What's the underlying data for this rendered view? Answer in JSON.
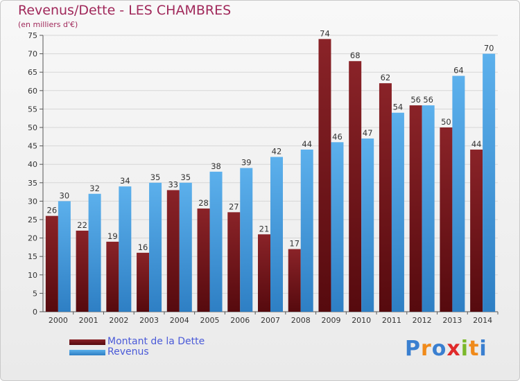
{
  "title": "Revenus/Dette - LES CHAMBRES",
  "subtitle": "(en milliers d'€)",
  "legend": {
    "dette_label": "Montant de la Dette",
    "revenus_label": "Revenus"
  },
  "logo": {
    "text": "Proxiti",
    "letters": [
      "P",
      "r",
      "o",
      "x",
      "i",
      "t",
      "i"
    ]
  },
  "colors": {
    "dette": "#7a1a1f",
    "revenus": "#4aa0e0",
    "title": "#a0285a",
    "legend_text": "#4a5ad8"
  },
  "chart_data": {
    "type": "bar",
    "title": "Revenus/Dette - LES CHAMBRES",
    "ylabel": "(en milliers d'€)",
    "xlabel": "",
    "categories": [
      "2000",
      "2001",
      "2002",
      "2003",
      "2004",
      "2005",
      "2006",
      "2007",
      "2008",
      "2009",
      "2010",
      "2011",
      "2012",
      "2013",
      "2014"
    ],
    "series": [
      {
        "name": "Montant de la Dette",
        "color": "#7a1a1f",
        "values": [
          26,
          22,
          19,
          16,
          33,
          28,
          27,
          21,
          17,
          74,
          68,
          62,
          56,
          50,
          44
        ]
      },
      {
        "name": "Revenus",
        "color": "#4aa0e0",
        "values": [
          30,
          32,
          34,
          35,
          35,
          38,
          39,
          42,
          44,
          46,
          47,
          54,
          56,
          64,
          70
        ]
      }
    ],
    "ylim": [
      0,
      75
    ],
    "yticks": [
      0,
      5,
      10,
      15,
      20,
      25,
      30,
      35,
      40,
      45,
      50,
      55,
      60,
      65,
      70,
      75
    ],
    "grid": true,
    "legend_position": "bottom-left"
  }
}
